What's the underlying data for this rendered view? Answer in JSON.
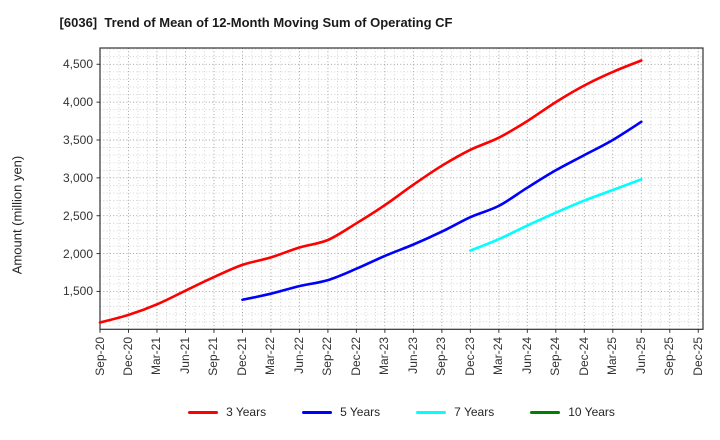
{
  "chart_data": {
    "type": "line",
    "title": "[6036]  Trend of Mean of 12-Month Moving Sum of Operating CF",
    "ylabel": "Amount (million yen)",
    "x_categories": [
      "Sep-20",
      "Dec-20",
      "Mar-21",
      "Jun-21",
      "Sep-21",
      "Dec-21",
      "Mar-22",
      "Jun-22",
      "Sep-22",
      "Dec-22",
      "Mar-23",
      "Jun-23",
      "Sep-23",
      "Dec-23",
      "Mar-24",
      "Jun-24",
      "Sep-24",
      "Dec-24",
      "Mar-25",
      "Jun-25",
      "Sep-25",
      "Dec-25"
    ],
    "months_per_category": 3,
    "xlim_months": [
      0,
      63.5
    ],
    "y_ticks": [
      1500,
      2000,
      2500,
      3000,
      3500,
      4000,
      4500
    ],
    "ylim": [
      1000,
      4715
    ],
    "grid": "major-and-minor-dotted",
    "legend_position": "bottom-center",
    "axis_color": "#333333",
    "grid_major_color": "#9a9a9a",
    "grid_minor_color": "#c9c9c9",
    "series": [
      {
        "name": "3 Years",
        "color": "#ff0000",
        "start_index": 0,
        "values": [
          1090,
          1190,
          1330,
          1510,
          1690,
          1850,
          1950,
          2080,
          2180,
          2400,
          2640,
          2910,
          3160,
          3370,
          3530,
          3750,
          4000,
          4220,
          4400,
          4550
        ]
      },
      {
        "name": "5 Years",
        "color": "#0000ff",
        "start_index": 5,
        "values": [
          1390,
          1470,
          1570,
          1650,
          1800,
          1970,
          2120,
          2290,
          2480,
          2630,
          2870,
          3100,
          3300,
          3500,
          3740
        ]
      },
      {
        "name": "7 Years",
        "color": "#00ffff",
        "start_index": 13,
        "values": [
          2040,
          2190,
          2370,
          2540,
          2700,
          2840,
          2980
        ]
      },
      {
        "name": "10 Years",
        "color": "#008000",
        "start_index": 0,
        "values": []
      }
    ]
  }
}
